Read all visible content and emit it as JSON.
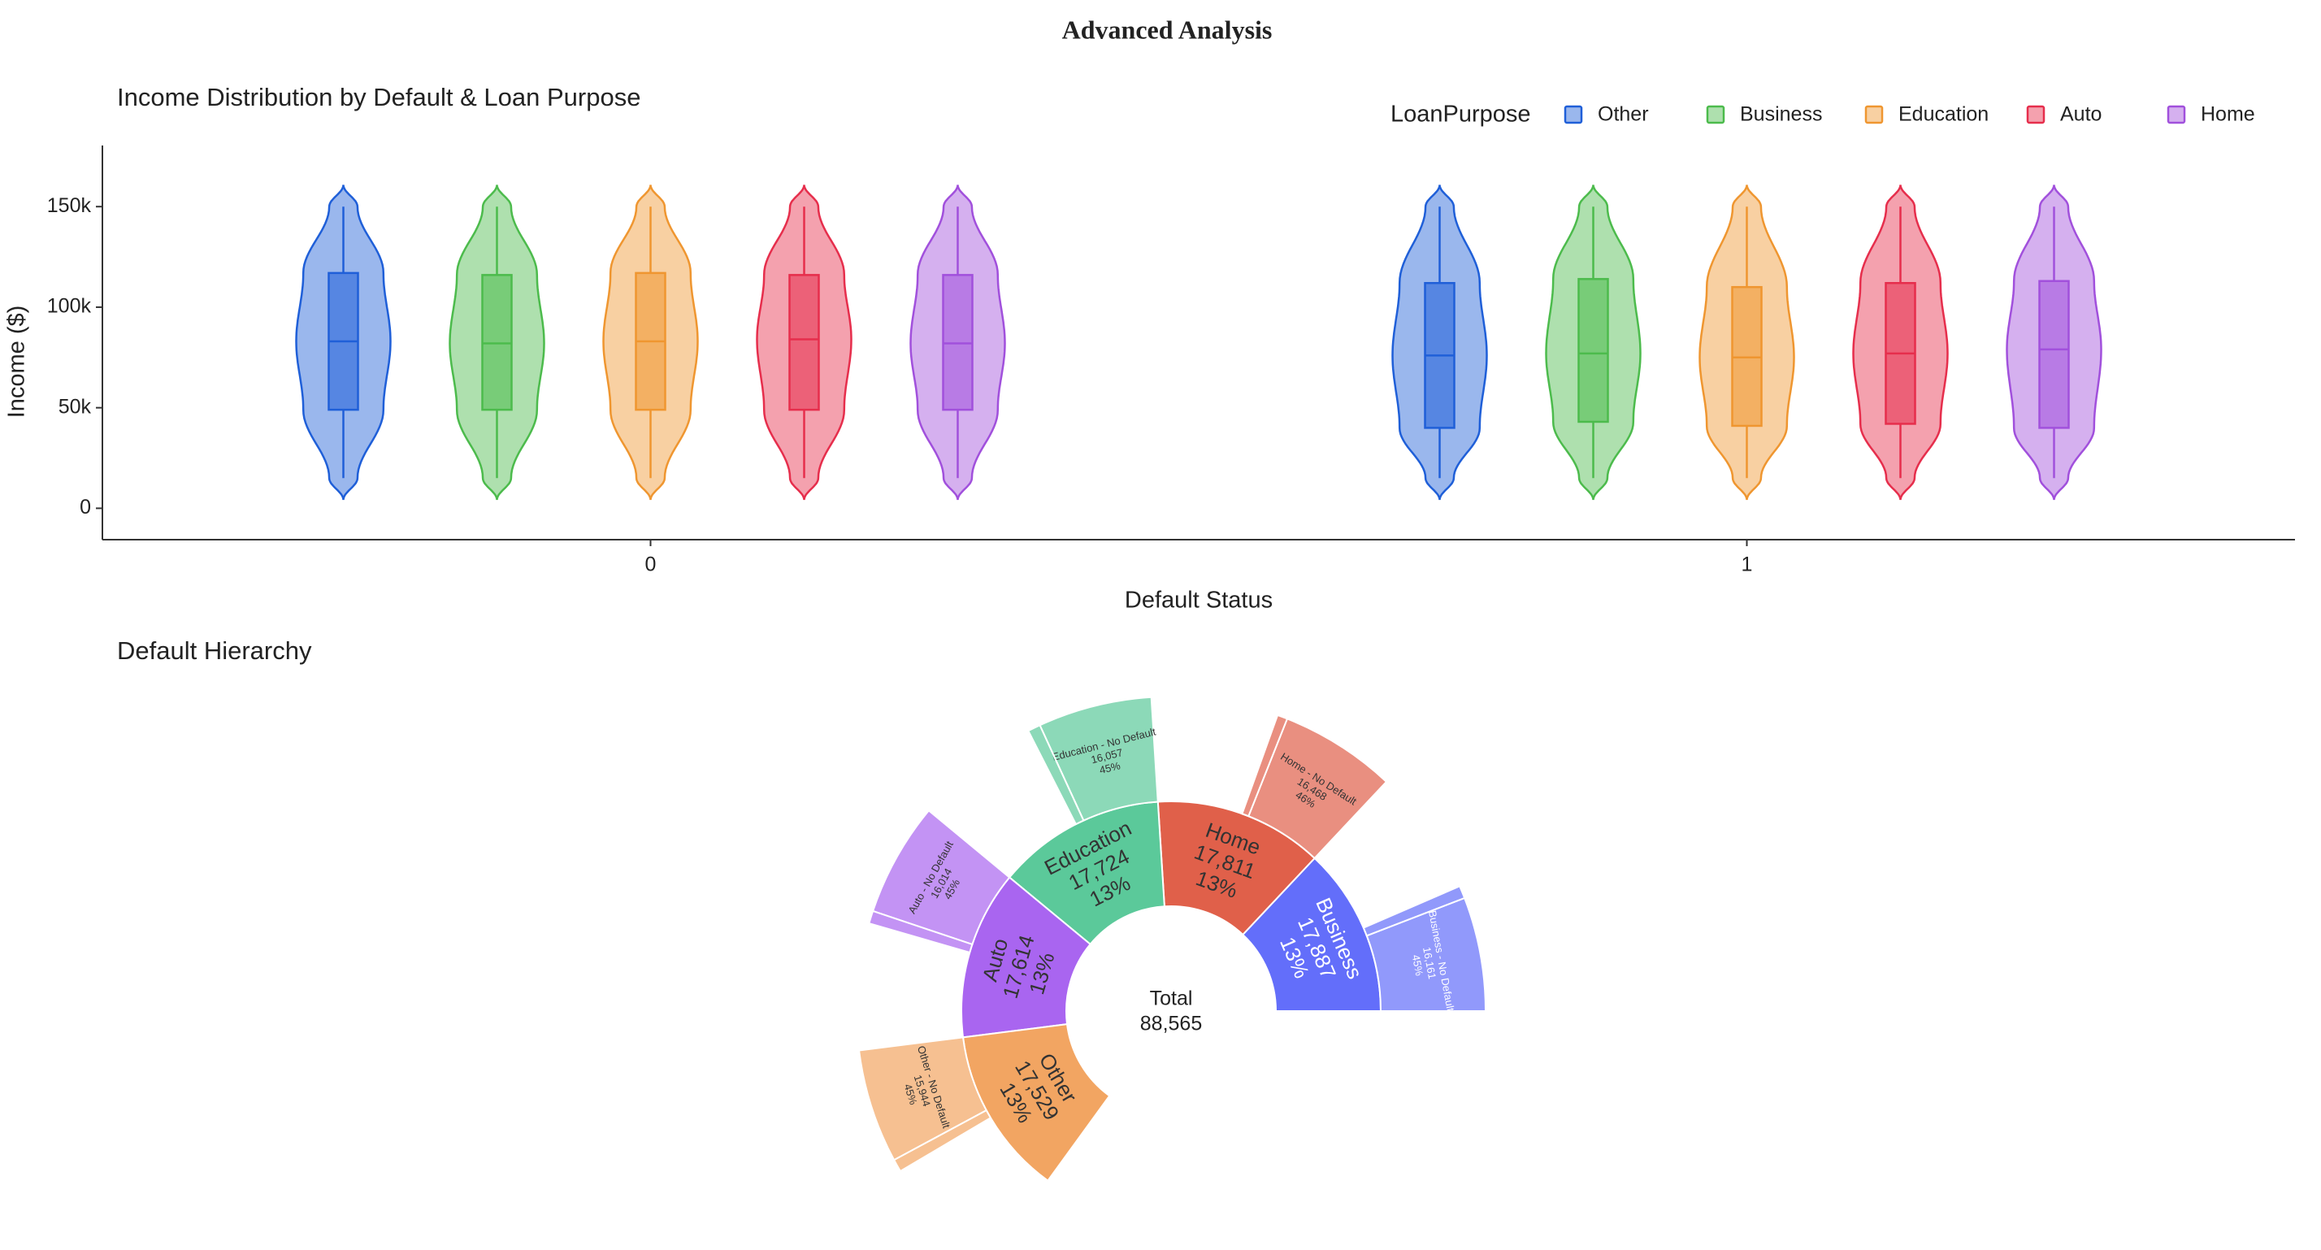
{
  "title": "Advanced Analysis",
  "chart_data": [
    {
      "type": "violin",
      "title": "Income Distribution by Default & Loan Purpose",
      "xlabel": "Default Status",
      "ylabel": "Income ($)",
      "categories": [
        "0",
        "1"
      ],
      "legend_title": "LoanPurpose",
      "series": [
        {
          "name": "Other",
          "color": "#1f5fd8",
          "stats": [
            {
              "min": 15000,
              "q1": 49000,
              "median": 83000,
              "q3": 117000,
              "max": 150000
            },
            {
              "min": 15000,
              "q1": 40000,
              "median": 76000,
              "q3": 112000,
              "max": 150000
            }
          ]
        },
        {
          "name": "Business",
          "color": "#4cbb4c",
          "stats": [
            {
              "min": 15000,
              "q1": 49000,
              "median": 82000,
              "q3": 116000,
              "max": 150000
            },
            {
              "min": 15000,
              "q1": 43000,
              "median": 77000,
              "q3": 114000,
              "max": 150000
            }
          ]
        },
        {
          "name": "Education",
          "color": "#ef9630",
          "stats": [
            {
              "min": 15000,
              "q1": 49000,
              "median": 83000,
              "q3": 117000,
              "max": 150000
            },
            {
              "min": 15000,
              "q1": 41000,
              "median": 75000,
              "q3": 110000,
              "max": 150000
            }
          ]
        },
        {
          "name": "Auto",
          "color": "#e62e4c",
          "stats": [
            {
              "min": 15000,
              "q1": 49000,
              "median": 84000,
              "q3": 116000,
              "max": 150000
            },
            {
              "min": 15000,
              "q1": 42000,
              "median": 77000,
              "q3": 112000,
              "max": 150000
            }
          ]
        },
        {
          "name": "Home",
          "color": "#a150dc",
          "stats": [
            {
              "min": 15000,
              "q1": 49000,
              "median": 82000,
              "q3": 116000,
              "max": 150000
            },
            {
              "min": 15000,
              "q1": 40000,
              "median": 79000,
              "q3": 113000,
              "max": 150000
            }
          ]
        }
      ],
      "ylim": [
        -15600,
        180400
      ],
      "yticks": [
        0,
        {
          "value": 50000,
          "label": "50k"
        },
        {
          "value": 100000,
          "label": "100k"
        },
        {
          "value": 150000,
          "label": "150k"
        }
      ]
    },
    {
      "type": "sunburst",
      "title": "Default Hierarchy",
      "root": {
        "label": "Total",
        "value": 88565,
        "value_label": "88,565"
      },
      "nodes": [
        {
          "label": "Business",
          "value": 17887,
          "value_label": "17,887",
          "percent": 13,
          "percent_label": "13%",
          "color": "#636efa",
          "children": [
            {
              "label": "Business - No Default",
              "value": 16161,
              "value_label": "16,161",
              "percent": 45,
              "percent_label": "45%"
            },
            {
              "value": 1726,
              "percent": 5
            }
          ]
        },
        {
          "label": "Home",
          "value": 17811,
          "value_label": "17,811",
          "percent": 13,
          "percent_label": "13%",
          "color": "#e0604a",
          "children": [
            {
              "label": "Home - No Default",
              "value": 16468,
              "value_label": "16,468",
              "percent": 46,
              "percent_label": "46%"
            },
            {
              "value": 1343,
              "percent": 4
            }
          ]
        },
        {
          "label": "Education",
          "value": 17724,
          "value_label": "17,724",
          "percent": 13,
          "percent_label": "13%",
          "color": "#5bc99a",
          "children": [
            {
              "label": "Education - No Default",
              "value": 16057,
              "value_label": "16,057",
              "percent": 45,
              "percent_label": "45%"
            },
            {
              "value": 1667,
              "percent": 5
            }
          ]
        },
        {
          "label": "Auto",
          "value": 17614,
          "value_label": "17,614",
          "percent": 13,
          "percent_label": "13%",
          "color": "#a965f0",
          "children": [
            {
              "label": "Auto - No Default",
              "value": 16014,
              "value_label": "16,014",
              "percent": 45,
              "percent_label": "45%"
            },
            {
              "value": 1600,
              "percent": 5
            }
          ]
        },
        {
          "label": "Other",
          "value": 17529,
          "value_label": "17,529",
          "percent": 13,
          "percent_label": "13%",
          "color": "#f2a562",
          "children": [
            {
              "label": "Other - No Default",
              "value": 15944,
              "value_label": "15,944",
              "percent": 45,
              "percent_label": "45%"
            },
            {
              "value": 1585,
              "percent": 5
            }
          ]
        }
      ]
    }
  ]
}
